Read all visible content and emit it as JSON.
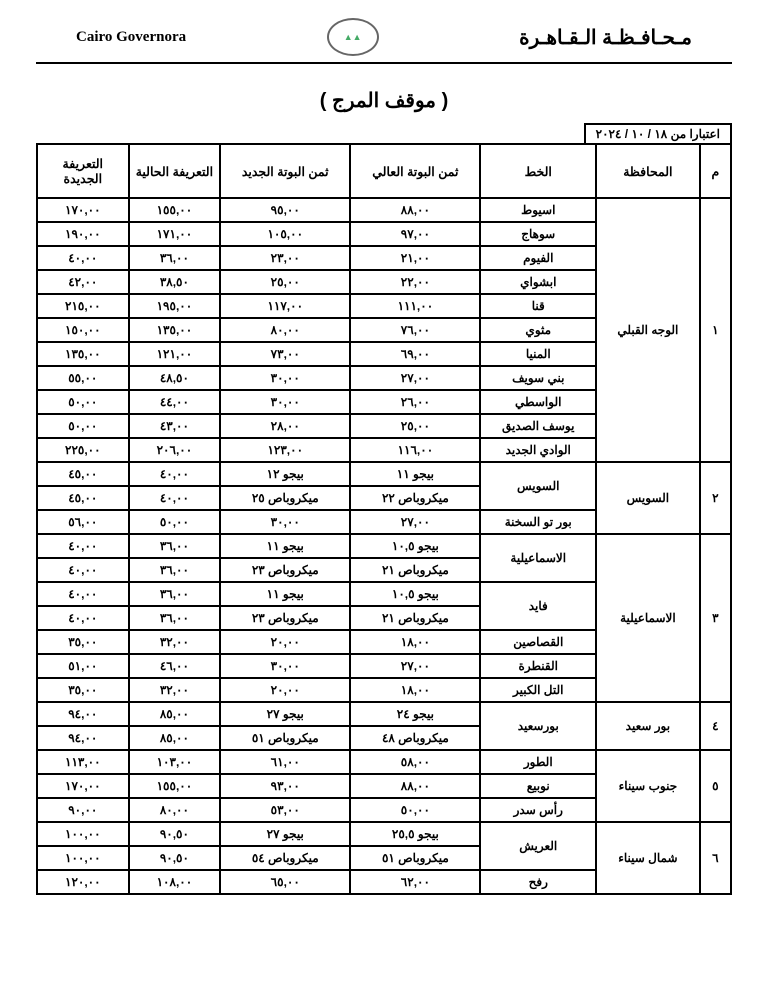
{
  "header": {
    "left": "Cairo Governora",
    "right": "مـحـافـظـة الـقـاهـرة"
  },
  "title": "( موقف المرج )",
  "date_label": "اعتبارا من ١٨ / ١٠ / ٢٠٢٤",
  "columns": [
    "م",
    "المحافظة",
    "الخط",
    "ثمن البوتة العالي",
    "ثمن البوتة الجديد",
    "التعريفة الحالية",
    "التعريفة الجديدة"
  ],
  "groups": [
    {
      "idx": "١",
      "gov": "الوجه القبلي",
      "rows": [
        {
          "line": "اسيوط",
          "c": [
            "٨٨,٠٠",
            "٩٥,٠٠",
            "١٥٥,٠٠",
            "١٧٠,٠٠"
          ]
        },
        {
          "line": "سوهاج",
          "c": [
            "٩٧,٠٠",
            "١٠٥,٠٠",
            "١٧١,٠٠",
            "١٩٠,٠٠"
          ]
        },
        {
          "line": "الفيوم",
          "c": [
            "٢١,٠٠",
            "٢٣,٠٠",
            "٣٦,٠٠",
            "٤٠,٠٠"
          ]
        },
        {
          "line": "ابشواي",
          "c": [
            "٢٢,٠٠",
            "٢٥,٠٠",
            "٣٨,٥٠",
            "٤٢,٠٠"
          ]
        },
        {
          "line": "قنا",
          "c": [
            "١١١,٠٠",
            "١١٧,٠٠",
            "١٩٥,٠٠",
            "٢١٥,٠٠"
          ]
        },
        {
          "line": "مثوي",
          "c": [
            "٧٦,٠٠",
            "٨٠,٠٠",
            "١٣٥,٠٠",
            "١٥٠,٠٠"
          ]
        },
        {
          "line": "المنيا",
          "c": [
            "٦٩,٠٠",
            "٧٣,٠٠",
            "١٢١,٠٠",
            "١٣٥,٠٠"
          ]
        },
        {
          "line": "بني سويف",
          "c": [
            "٢٧,٠٠",
            "٣٠,٠٠",
            "٤٨,٥٠",
            "٥٥,٠٠"
          ]
        },
        {
          "line": "الواسطي",
          "c": [
            "٢٦,٠٠",
            "٣٠,٠٠",
            "٤٤,٠٠",
            "٥٠,٠٠"
          ]
        },
        {
          "line": "يوسف الصديق",
          "c": [
            "٢٥,٠٠",
            "٢٨,٠٠",
            "٤٣,٠٠",
            "٥٠,٠٠"
          ]
        },
        {
          "line": "الوادي الجديد",
          "c": [
            "١١٦,٠٠",
            "١٢٣,٠٠",
            "٢٠٦,٠٠",
            "٢٢٥,٠٠"
          ]
        }
      ]
    },
    {
      "idx": "٢",
      "gov": "السويس",
      "rows": [
        {
          "line": "السويس",
          "span": 2,
          "c": [
            "بيجو ١١",
            "بيجو ١٢",
            "٤٠,٠٠",
            "٤٥,٠٠"
          ]
        },
        {
          "c": [
            "ميكروباص ٢٢",
            "ميكروباص ٢٥",
            "٤٠,٠٠",
            "٤٥,٠٠"
          ]
        },
        {
          "line": "بور تو السخنة",
          "c": [
            "٢٧,٠٠",
            "٣٠,٠٠",
            "٥٠,٠٠",
            "٥٦,٠٠"
          ]
        }
      ]
    },
    {
      "idx": "٣",
      "gov": "الاسماعيلية",
      "rows": [
        {
          "line": "الاسماعيلية",
          "span": 2,
          "c": [
            "بيجو ١٠,٥",
            "بيجو ١١",
            "٣٦,٠٠",
            "٤٠,٠٠"
          ]
        },
        {
          "c": [
            "ميكروباص ٢١",
            "ميكروباص ٢٣",
            "٣٦,٠٠",
            "٤٠,٠٠"
          ]
        },
        {
          "line": "فايد",
          "span": 2,
          "c": [
            "بيجو ١٠,٥",
            "بيجو ١١",
            "٣٦,٠٠",
            "٤٠,٠٠"
          ]
        },
        {
          "c": [
            "ميكروباص ٢١",
            "ميكروباص ٢٣",
            "٣٦,٠٠",
            "٤٠,٠٠"
          ]
        },
        {
          "line": "القصاصين",
          "c": [
            "١٨,٠٠",
            "٢٠,٠٠",
            "٣٢,٠٠",
            "٣٥,٠٠"
          ]
        },
        {
          "line": "القنطرة",
          "c": [
            "٢٧,٠٠",
            "٣٠,٠٠",
            "٤٦,٠٠",
            "٥١,٠٠"
          ]
        },
        {
          "line": "التل الكبير",
          "c": [
            "١٨,٠٠",
            "٢٠,٠٠",
            "٣٢,٠٠",
            "٣٥,٠٠"
          ]
        }
      ]
    },
    {
      "idx": "٤",
      "gov": "بور سعيد",
      "rows": [
        {
          "line": "بورسعيد",
          "span": 2,
          "c": [
            "بيجو ٢٤",
            "بيجو ٢٧",
            "٨٥,٠٠",
            "٩٤,٠٠"
          ]
        },
        {
          "c": [
            "ميكروباص ٤٨",
            "ميكروباص ٥١",
            "٨٥,٠٠",
            "٩٤,٠٠"
          ]
        }
      ]
    },
    {
      "idx": "٥",
      "gov": "جنوب سيناء",
      "rows": [
        {
          "line": "الطور",
          "c": [
            "٥٨,٠٠",
            "٦١,٠٠",
            "١٠٣,٠٠",
            "١١٣,٠٠"
          ]
        },
        {
          "line": "نوبيع",
          "c": [
            "٨٨,٠٠",
            "٩٣,٠٠",
            "١٥٥,٠٠",
            "١٧٠,٠٠"
          ]
        },
        {
          "line": "رأس سدر",
          "c": [
            "٥٠,٠٠",
            "٥٣,٠٠",
            "٨٠,٠٠",
            "٩٠,٠٠"
          ]
        }
      ]
    },
    {
      "idx": "٦",
      "gov": "شمال سيناء",
      "rows": [
        {
          "line": "العريش",
          "span": 2,
          "c": [
            "بيجو ٢٥,٥",
            "بيجو ٢٧",
            "٩٠,٥٠",
            "١٠٠,٠٠"
          ]
        },
        {
          "c": [
            "ميكروباص ٥١",
            "ميكروباص ٥٤",
            "٩٠,٥٠",
            "١٠٠,٠٠"
          ]
        },
        {
          "line": "رفح",
          "c": [
            "٦٢,٠٠",
            "٦٥,٠٠",
            "١٠٨,٠٠",
            "١٢٠,٠٠"
          ]
        }
      ]
    }
  ]
}
